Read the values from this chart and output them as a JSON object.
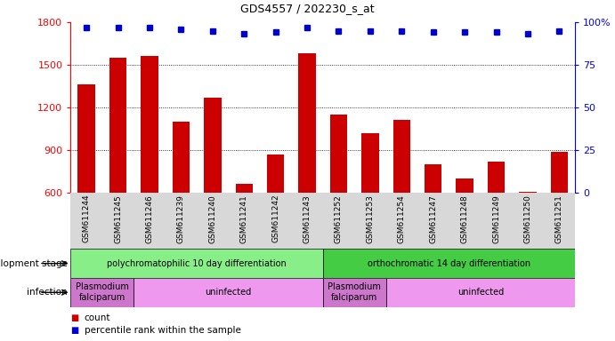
{
  "title": "GDS4557 / 202230_s_at",
  "samples": [
    "GSM611244",
    "GSM611245",
    "GSM611246",
    "GSM611239",
    "GSM611240",
    "GSM611241",
    "GSM611242",
    "GSM611243",
    "GSM611252",
    "GSM611253",
    "GSM611254",
    "GSM611247",
    "GSM611248",
    "GSM611249",
    "GSM611250",
    "GSM611251"
  ],
  "counts": [
    1360,
    1550,
    1560,
    1100,
    1270,
    660,
    870,
    1580,
    1150,
    1020,
    1110,
    800,
    700,
    820,
    605,
    890
  ],
  "percentiles": [
    97,
    97,
    97,
    96,
    95,
    93,
    94,
    97,
    95,
    95,
    95,
    94,
    94,
    94,
    93,
    95
  ],
  "percentile_max": 100,
  "ylim_left": [
    600,
    1800
  ],
  "yticks_left": [
    600,
    900,
    1200,
    1500,
    1800
  ],
  "yticks_right": [
    0,
    25,
    50,
    75,
    100
  ],
  "bar_color": "#cc0000",
  "dot_color": "#0000cc",
  "bar_width": 0.55,
  "plot_bg_color": "#ffffff",
  "dev_stage_groups": [
    {
      "label": "polychromatophilic 10 day differentiation",
      "start": 0,
      "end": 7,
      "color": "#88ee88"
    },
    {
      "label": "orthochromatic 14 day differentiation",
      "start": 8,
      "end": 15,
      "color": "#44cc44"
    }
  ],
  "infection_groups": [
    {
      "label": "Plasmodium\nfalciparum",
      "start": 0,
      "end": 1,
      "color": "#dd88dd"
    },
    {
      "label": "uninfected",
      "start": 2,
      "end": 7,
      "color": "#ee88ee"
    },
    {
      "label": "Plasmodium\nfalciparum",
      "start": 8,
      "end": 9,
      "color": "#dd88dd"
    },
    {
      "label": "uninfected",
      "start": 10,
      "end": 15,
      "color": "#ee88ee"
    }
  ],
  "dev_stage_label": "development stage",
  "infection_label": "infection",
  "legend_count_label": "count",
  "legend_percentile_label": "percentile rank within the sample"
}
